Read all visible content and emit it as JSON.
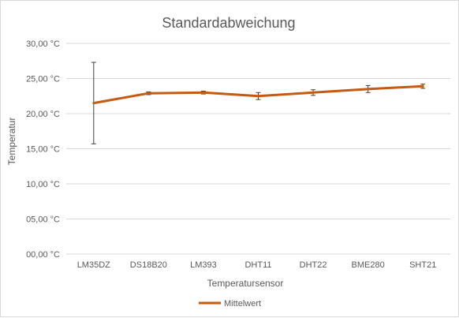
{
  "chart_data": {
    "type": "line",
    "title": "Standardabweichung",
    "xlabel": "Temperatursensor",
    "ylabel": "Temperatur",
    "categories": [
      "LM35DZ",
      "DS18B20",
      "LM393",
      "DHT11",
      "DHT22",
      "BME280",
      "SHT21"
    ],
    "series": [
      {
        "name": "Mittelwert",
        "color": "#C55A11",
        "values": [
          21.5,
          22.9,
          23.0,
          22.5,
          23.0,
          23.5,
          23.9
        ],
        "error": [
          5.8,
          0.2,
          0.2,
          0.5,
          0.4,
          0.5,
          0.3
        ]
      }
    ],
    "ylim": [
      0,
      30
    ],
    "yticks": [
      {
        "value": 0,
        "label": "00,00 °C"
      },
      {
        "value": 5,
        "label": "05,00 °C"
      },
      {
        "value": 10,
        "label": "10,00 °C"
      },
      {
        "value": 15,
        "label": "15,00 °C"
      },
      {
        "value": 20,
        "label": "20,00 °C"
      },
      {
        "value": 25,
        "label": "25,00 °C"
      },
      {
        "value": 30,
        "label": "30,00 °C"
      }
    ],
    "grid": true,
    "legend_position": "bottom",
    "gridline_color": "#D9D9D9",
    "text_color": "#595959"
  }
}
